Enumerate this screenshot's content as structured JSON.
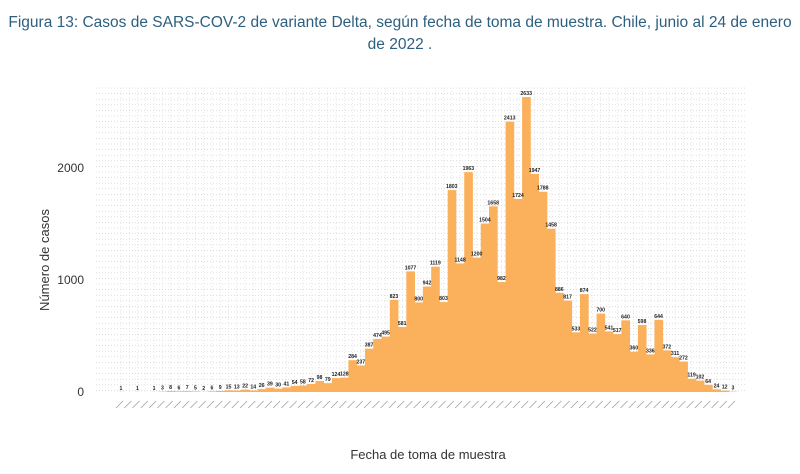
{
  "figure": {
    "title_line1": "Figura 13: Casos de SARS-COV-2 de variante Delta, según fecha de toma de muestra. Chile, junio al 24 de enero",
    "title_line2": "de 2022 ."
  },
  "chart_data": {
    "type": "bar",
    "title": "Figura 13: Casos de SARS-COV-2 de variante Delta, según fecha de toma de muestra. Chile, junio al 24 de enero de 2022 .",
    "xlabel": "Fecha de toma de muestra",
    "ylabel": "Número de casos",
    "ylim": [
      0,
      2800
    ],
    "yticks": [
      0,
      1000,
      2000
    ],
    "grid": true,
    "bar_color": "#fbb15c",
    "values": [
      1,
      0,
      1,
      0,
      1,
      3,
      8,
      6,
      7,
      5,
      2,
      6,
      9,
      15,
      13,
      22,
      14,
      26,
      39,
      30,
      41,
      54,
      58,
      72,
      98,
      79,
      124,
      128,
      284,
      237,
      387,
      474,
      495,
      823,
      581,
      1077,
      800,
      942,
      1119,
      803,
      1803,
      1148,
      1963,
      1200,
      1504,
      1658,
      982,
      2413,
      1724,
      2633,
      1947,
      1788,
      1458,
      886,
      817,
      533,
      874,
      522,
      700,
      541,
      517,
      640,
      360,
      598,
      336,
      644,
      372,
      311,
      272,
      119,
      102,
      64,
      24,
      12,
      3
    ]
  }
}
